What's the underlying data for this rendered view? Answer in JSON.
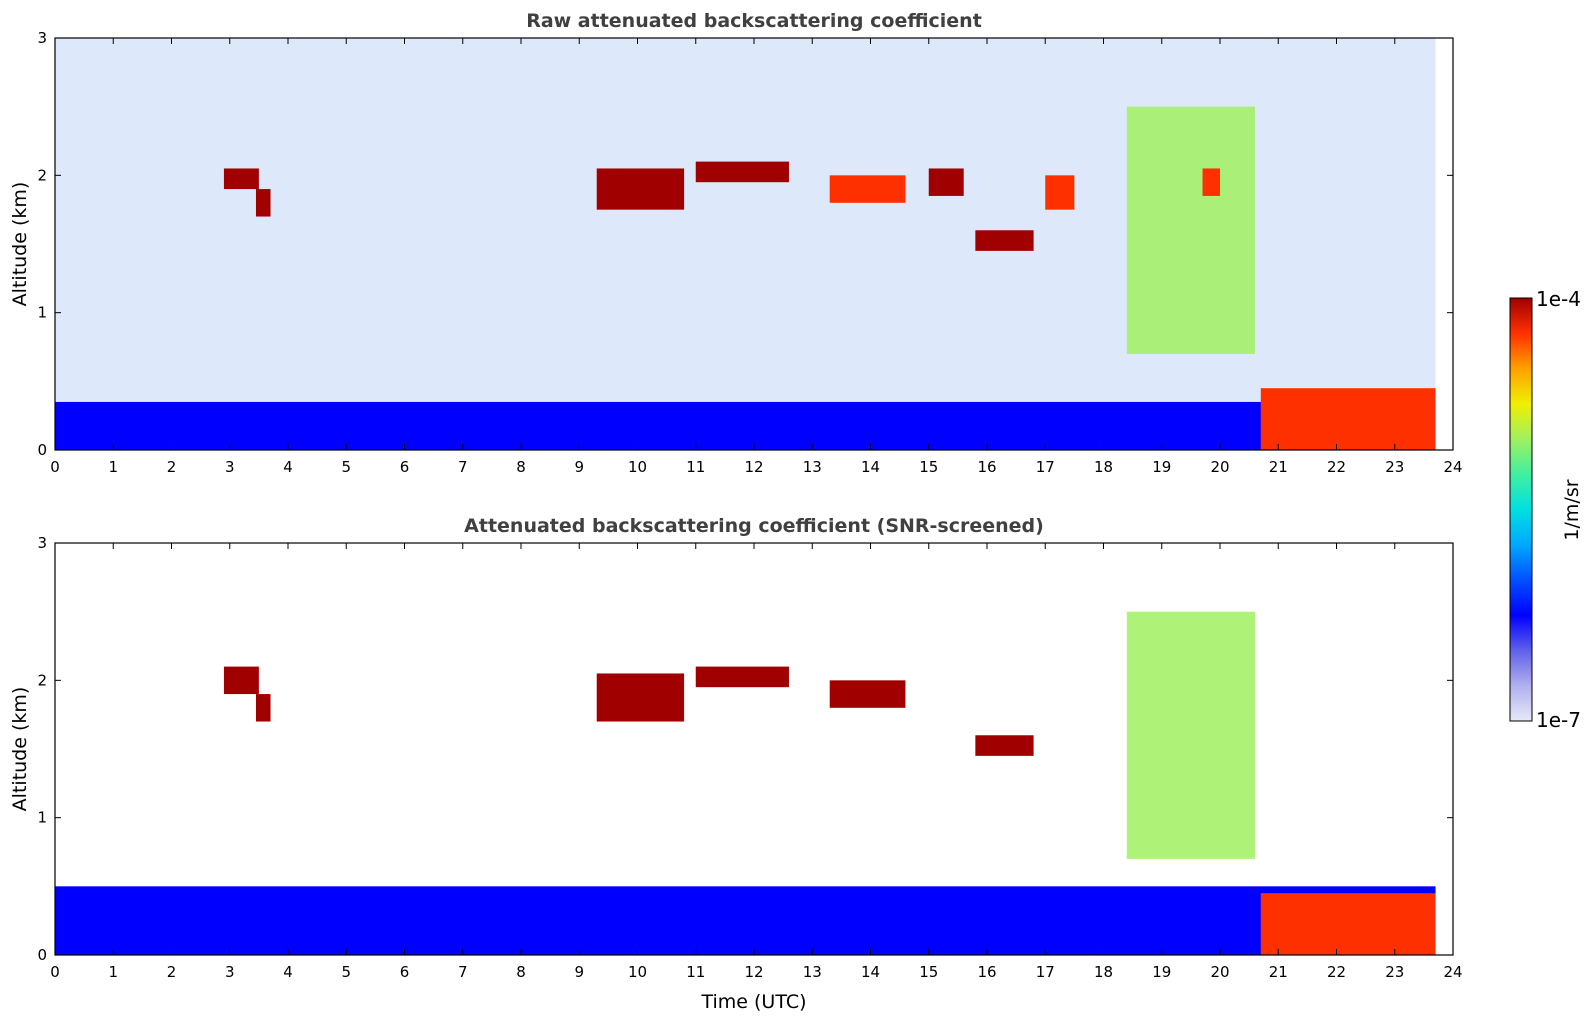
{
  "chart_data": [
    {
      "type": "heatmap",
      "title": "Raw attenuated backscattering coefficient",
      "xlabel": "",
      "ylabel": "Altitude (km)",
      "xlim": [
        0,
        24
      ],
      "ylim": [
        0,
        3
      ],
      "xticks": [
        "0",
        "1",
        "2",
        "3",
        "4",
        "5",
        "6",
        "7",
        "8",
        "9",
        "10",
        "11",
        "12",
        "13",
        "14",
        "15",
        "16",
        "17",
        "18",
        "19",
        "20",
        "21",
        "22",
        "23",
        "24"
      ],
      "yticks": [
        "0",
        "1",
        "2",
        "3"
      ],
      "grid": false,
      "features": [
        {
          "name": "boundary-layer",
          "x": [
            0,
            23.7
          ],
          "y": [
            0,
            0.35
          ],
          "level": 0.28
        },
        {
          "name": "cloud",
          "x": [
            2.9,
            3.5
          ],
          "y": [
            1.9,
            2.05
          ],
          "level": 1.0
        },
        {
          "name": "cloud",
          "x": [
            3.45,
            3.7
          ],
          "y": [
            1.7,
            1.9
          ],
          "level": 1.0
        },
        {
          "name": "cloud",
          "x": [
            9.3,
            10.8
          ],
          "y": [
            1.75,
            2.05
          ],
          "level": 1.0
        },
        {
          "name": "cloud",
          "x": [
            11.0,
            12.6
          ],
          "y": [
            1.95,
            2.1
          ],
          "level": 1.0
        },
        {
          "name": "cloud",
          "x": [
            13.3,
            14.6
          ],
          "y": [
            1.8,
            2.0
          ],
          "level": 0.95
        },
        {
          "name": "cloud",
          "x": [
            15.0,
            15.6
          ],
          "y": [
            1.85,
            2.05
          ],
          "level": 1.0
        },
        {
          "name": "cloud",
          "x": [
            15.8,
            16.8
          ],
          "y": [
            1.45,
            1.6
          ],
          "level": 1.0
        },
        {
          "name": "cloud",
          "x": [
            17.0,
            17.5
          ],
          "y": [
            1.75,
            2.0
          ],
          "level": 0.95
        },
        {
          "name": "virga",
          "x": [
            18.4,
            20.6
          ],
          "y": [
            0.7,
            2.5
          ],
          "level": 0.65
        },
        {
          "name": "cloud",
          "x": [
            19.7,
            20.0
          ],
          "y": [
            1.85,
            2.05
          ],
          "level": 0.95
        },
        {
          "name": "precipitation",
          "x": [
            20.7,
            23.7
          ],
          "y": [
            0,
            0.45
          ],
          "level": 0.9
        }
      ]
    },
    {
      "type": "heatmap",
      "title": "Attenuated backscattering coefficient (SNR-screened)",
      "xlabel": "Time (UTC)",
      "ylabel": "Altitude (km)",
      "xlim": [
        0,
        24
      ],
      "ylim": [
        0,
        3
      ],
      "xticks": [
        "0",
        "1",
        "2",
        "3",
        "4",
        "5",
        "6",
        "7",
        "8",
        "9",
        "10",
        "11",
        "12",
        "13",
        "14",
        "15",
        "16",
        "17",
        "18",
        "19",
        "20",
        "21",
        "22",
        "23",
        "24"
      ],
      "yticks": [
        "0",
        "1",
        "2",
        "3"
      ],
      "grid": false,
      "features": [
        {
          "name": "boundary-layer",
          "x": [
            0,
            23.7
          ],
          "y": [
            0,
            0.5
          ],
          "level": 0.25
        },
        {
          "name": "cloud",
          "x": [
            2.9,
            3.5
          ],
          "y": [
            1.9,
            2.1
          ],
          "level": 1.0
        },
        {
          "name": "cloud",
          "x": [
            3.45,
            3.7
          ],
          "y": [
            1.7,
            1.9
          ],
          "level": 1.0
        },
        {
          "name": "cloud",
          "x": [
            9.3,
            10.8
          ],
          "y": [
            1.7,
            2.05
          ],
          "level": 1.0
        },
        {
          "name": "cloud",
          "x": [
            11.0,
            12.6
          ],
          "y": [
            1.95,
            2.1
          ],
          "level": 1.0
        },
        {
          "name": "cloud",
          "x": [
            13.3,
            14.6
          ],
          "y": [
            1.8,
            2.0
          ],
          "level": 1.0
        },
        {
          "name": "cloud",
          "x": [
            15.8,
            16.8
          ],
          "y": [
            1.45,
            1.6
          ],
          "level": 1.0
        },
        {
          "name": "virga",
          "x": [
            18.4,
            20.6
          ],
          "y": [
            0.7,
            2.5
          ],
          "level": 0.65
        },
        {
          "name": "precipitation",
          "x": [
            20.7,
            23.7
          ],
          "y": [
            0,
            0.45
          ],
          "level": 0.9
        }
      ]
    }
  ],
  "colorbar": {
    "label": "1/m/sr",
    "max_label": "1e-4",
    "min_label": "1e-7",
    "colors": [
      "#e8e8f8",
      "#b0b0ee",
      "#6060ea",
      "#0000ff",
      "#0050ff",
      "#00a8ff",
      "#00e0e0",
      "#40f0a0",
      "#a0f060",
      "#f0f000",
      "#ffa000",
      "#ff3000",
      "#a00000"
    ]
  }
}
